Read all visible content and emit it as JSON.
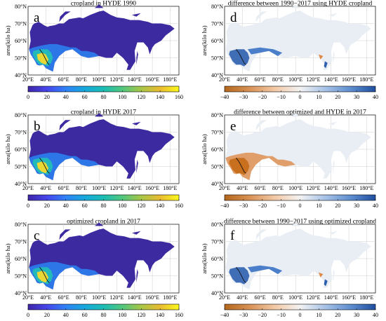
{
  "panels": [
    {
      "letter": "a",
      "title": "cropland in HYDE 1990",
      "colormap": "viridis",
      "ticks": [
        "0",
        "20",
        "40",
        "60",
        "80",
        "100",
        "120",
        "140",
        "160"
      ],
      "range": [
        0,
        160
      ],
      "ylabel": "area(kilo ha)"
    },
    {
      "letter": "d",
      "title": "difference between 1990−2017 using HYDE cropland",
      "colormap": "diverging",
      "ticks": [
        "−40",
        "−30",
        "−20",
        "−10",
        "0",
        "10",
        "20",
        "30",
        "40"
      ],
      "range": [
        -40,
        40
      ],
      "ylabel": "area(kilo ha)"
    },
    {
      "letter": "b",
      "title": "cropland in HYDE 2017",
      "colormap": "viridis",
      "ticks": [
        "0",
        "20",
        "40",
        "60",
        "80",
        "100",
        "120",
        "140",
        "160"
      ],
      "range": [
        0,
        160
      ],
      "ylabel": "area(kilo ha)"
    },
    {
      "letter": "e",
      "title": "difference between optimized and HYDE in 2017",
      "colormap": "diverging",
      "ticks": [
        "−40",
        "−30",
        "−20",
        "−10",
        "0",
        "10",
        "20",
        "30",
        "40"
      ],
      "range": [
        -40,
        40
      ],
      "ylabel": "area(kilo ha)"
    },
    {
      "letter": "c",
      "title": "optimized cropland in 2017",
      "colormap": "viridis",
      "ticks": [
        "0",
        "20",
        "40",
        "60",
        "80",
        "100",
        "120",
        "140",
        "160"
      ],
      "range": [
        0,
        160
      ],
      "ylabel": "area(kilo ha)"
    },
    {
      "letter": "f",
      "title": "difference between 1990−2017 using optimized cropland",
      "colormap": "diverging",
      "ticks": [
        "−40",
        "−30",
        "−20",
        "−10",
        "0",
        "10",
        "20",
        "30",
        "40"
      ],
      "range": [
        -40,
        40
      ],
      "ylabel": "area(kilo ha)"
    }
  ],
  "lat_labels": [
    "80°N",
    "70°N",
    "60°N",
    "50°N",
    "40°N"
  ],
  "lon_labels": [
    "20°E",
    "40°E",
    "60°E",
    "80°E",
    "100°E",
    "120°E",
    "140°E",
    "160°E",
    "180°E"
  ],
  "colors": {
    "viridis_base": "#3b2aa0",
    "viridis_stops": [
      "#3e26a8",
      "#4746eb",
      "#2f82f7",
      "#17a8dc",
      "#1bbcb4",
      "#51c77d",
      "#a8c647",
      "#eabb30",
      "#f9f91c"
    ],
    "diverging_stops": [
      "#b4671c",
      "#d99256",
      "#f3c9a6",
      "#f3f3f3",
      "#a7c2e6",
      "#5f8fd0",
      "#1f4ea0"
    ],
    "land_diff": "#e9eef4",
    "neg_patch": "#dd8a48",
    "pos_patch": "#2d5faf"
  }
}
